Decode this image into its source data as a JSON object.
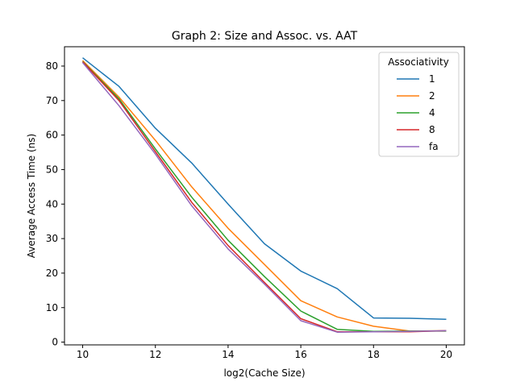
{
  "chart_data": {
    "type": "line",
    "title": "Graph 2: Size and Assoc. vs. AAT",
    "xlabel": "log2(Cache Size)",
    "ylabel": "Average Access Time (ns)",
    "xlim": [
      9.5,
      20.5
    ],
    "ylim": [
      -0.8,
      85.6
    ],
    "xticks": [
      10,
      12,
      14,
      16,
      18,
      20
    ],
    "yticks": [
      0,
      10,
      20,
      30,
      40,
      50,
      60,
      70,
      80
    ],
    "grid": false,
    "legend_title": "Associativity",
    "legend_position": "top-right",
    "x": [
      10,
      11,
      12,
      13,
      14,
      15,
      16,
      17,
      18,
      19,
      20
    ],
    "series": [
      {
        "name": "1",
        "color": "#1f77b4",
        "values": [
          82.4,
          74.1,
          62.0,
          51.9,
          40.0,
          28.5,
          20.6,
          15.5,
          7.0,
          6.9,
          6.6
        ]
      },
      {
        "name": "2",
        "color": "#ff7f0e",
        "values": [
          81.6,
          71.0,
          58.5,
          45.0,
          33.0,
          22.5,
          12.0,
          7.3,
          4.6,
          3.2,
          3.3
        ]
      },
      {
        "name": "4",
        "color": "#2ca02c",
        "values": [
          81.3,
          70.5,
          56.0,
          42.0,
          29.5,
          19.0,
          9.0,
          3.7,
          3.1,
          3.2,
          3.2
        ]
      },
      {
        "name": "8",
        "color": "#d62728",
        "values": [
          81.2,
          70.0,
          55.2,
          40.5,
          28.0,
          17.3,
          6.8,
          3.0,
          3.0,
          3.0,
          3.3
        ]
      },
      {
        "name": "fa",
        "color": "#9467bd",
        "values": [
          81.0,
          68.5,
          54.5,
          39.5,
          27.0,
          16.8,
          6.2,
          2.9,
          3.0,
          3.1,
          3.3
        ]
      }
    ]
  }
}
